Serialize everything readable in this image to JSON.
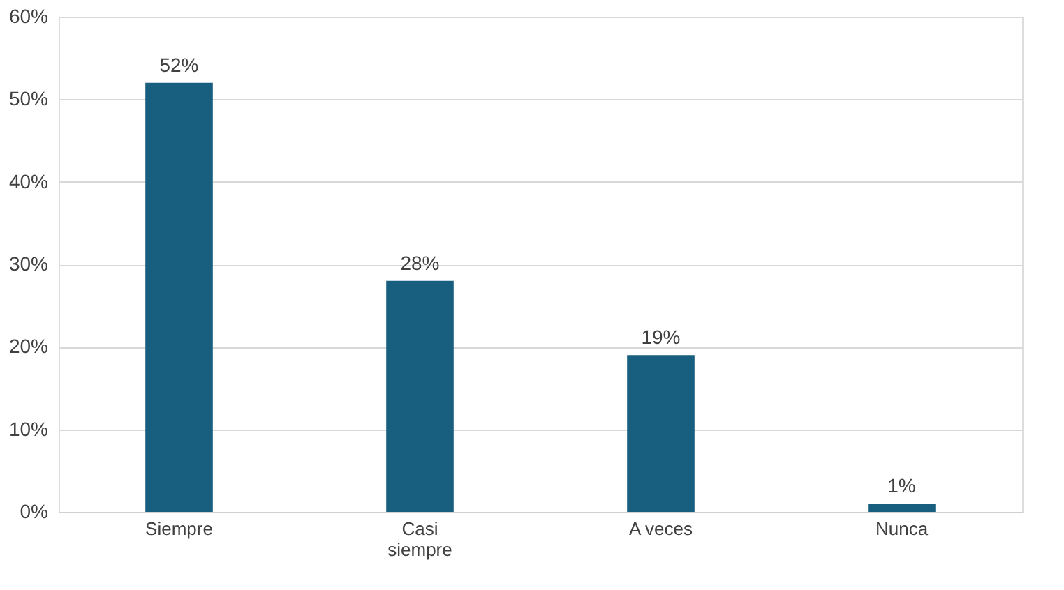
{
  "chart_data": {
    "type": "bar",
    "categories": [
      "Siempre",
      "Casi siempre",
      "A veces",
      "Nunca"
    ],
    "values": [
      52,
      28,
      19,
      1
    ],
    "value_labels": [
      "52%",
      "28%",
      "19%",
      "1%"
    ],
    "color": "#175e7f",
    "ylim": [
      0,
      60
    ],
    "yticks": [
      {
        "value": 0,
        "label": "0%"
      },
      {
        "value": 10,
        "label": "10%"
      },
      {
        "value": 20,
        "label": "20%"
      },
      {
        "value": 30,
        "label": "30%"
      },
      {
        "value": 40,
        "label": "40%"
      },
      {
        "value": 50,
        "label": "50%"
      },
      {
        "value": 60,
        "label": "60%"
      }
    ],
    "grid": "y"
  }
}
